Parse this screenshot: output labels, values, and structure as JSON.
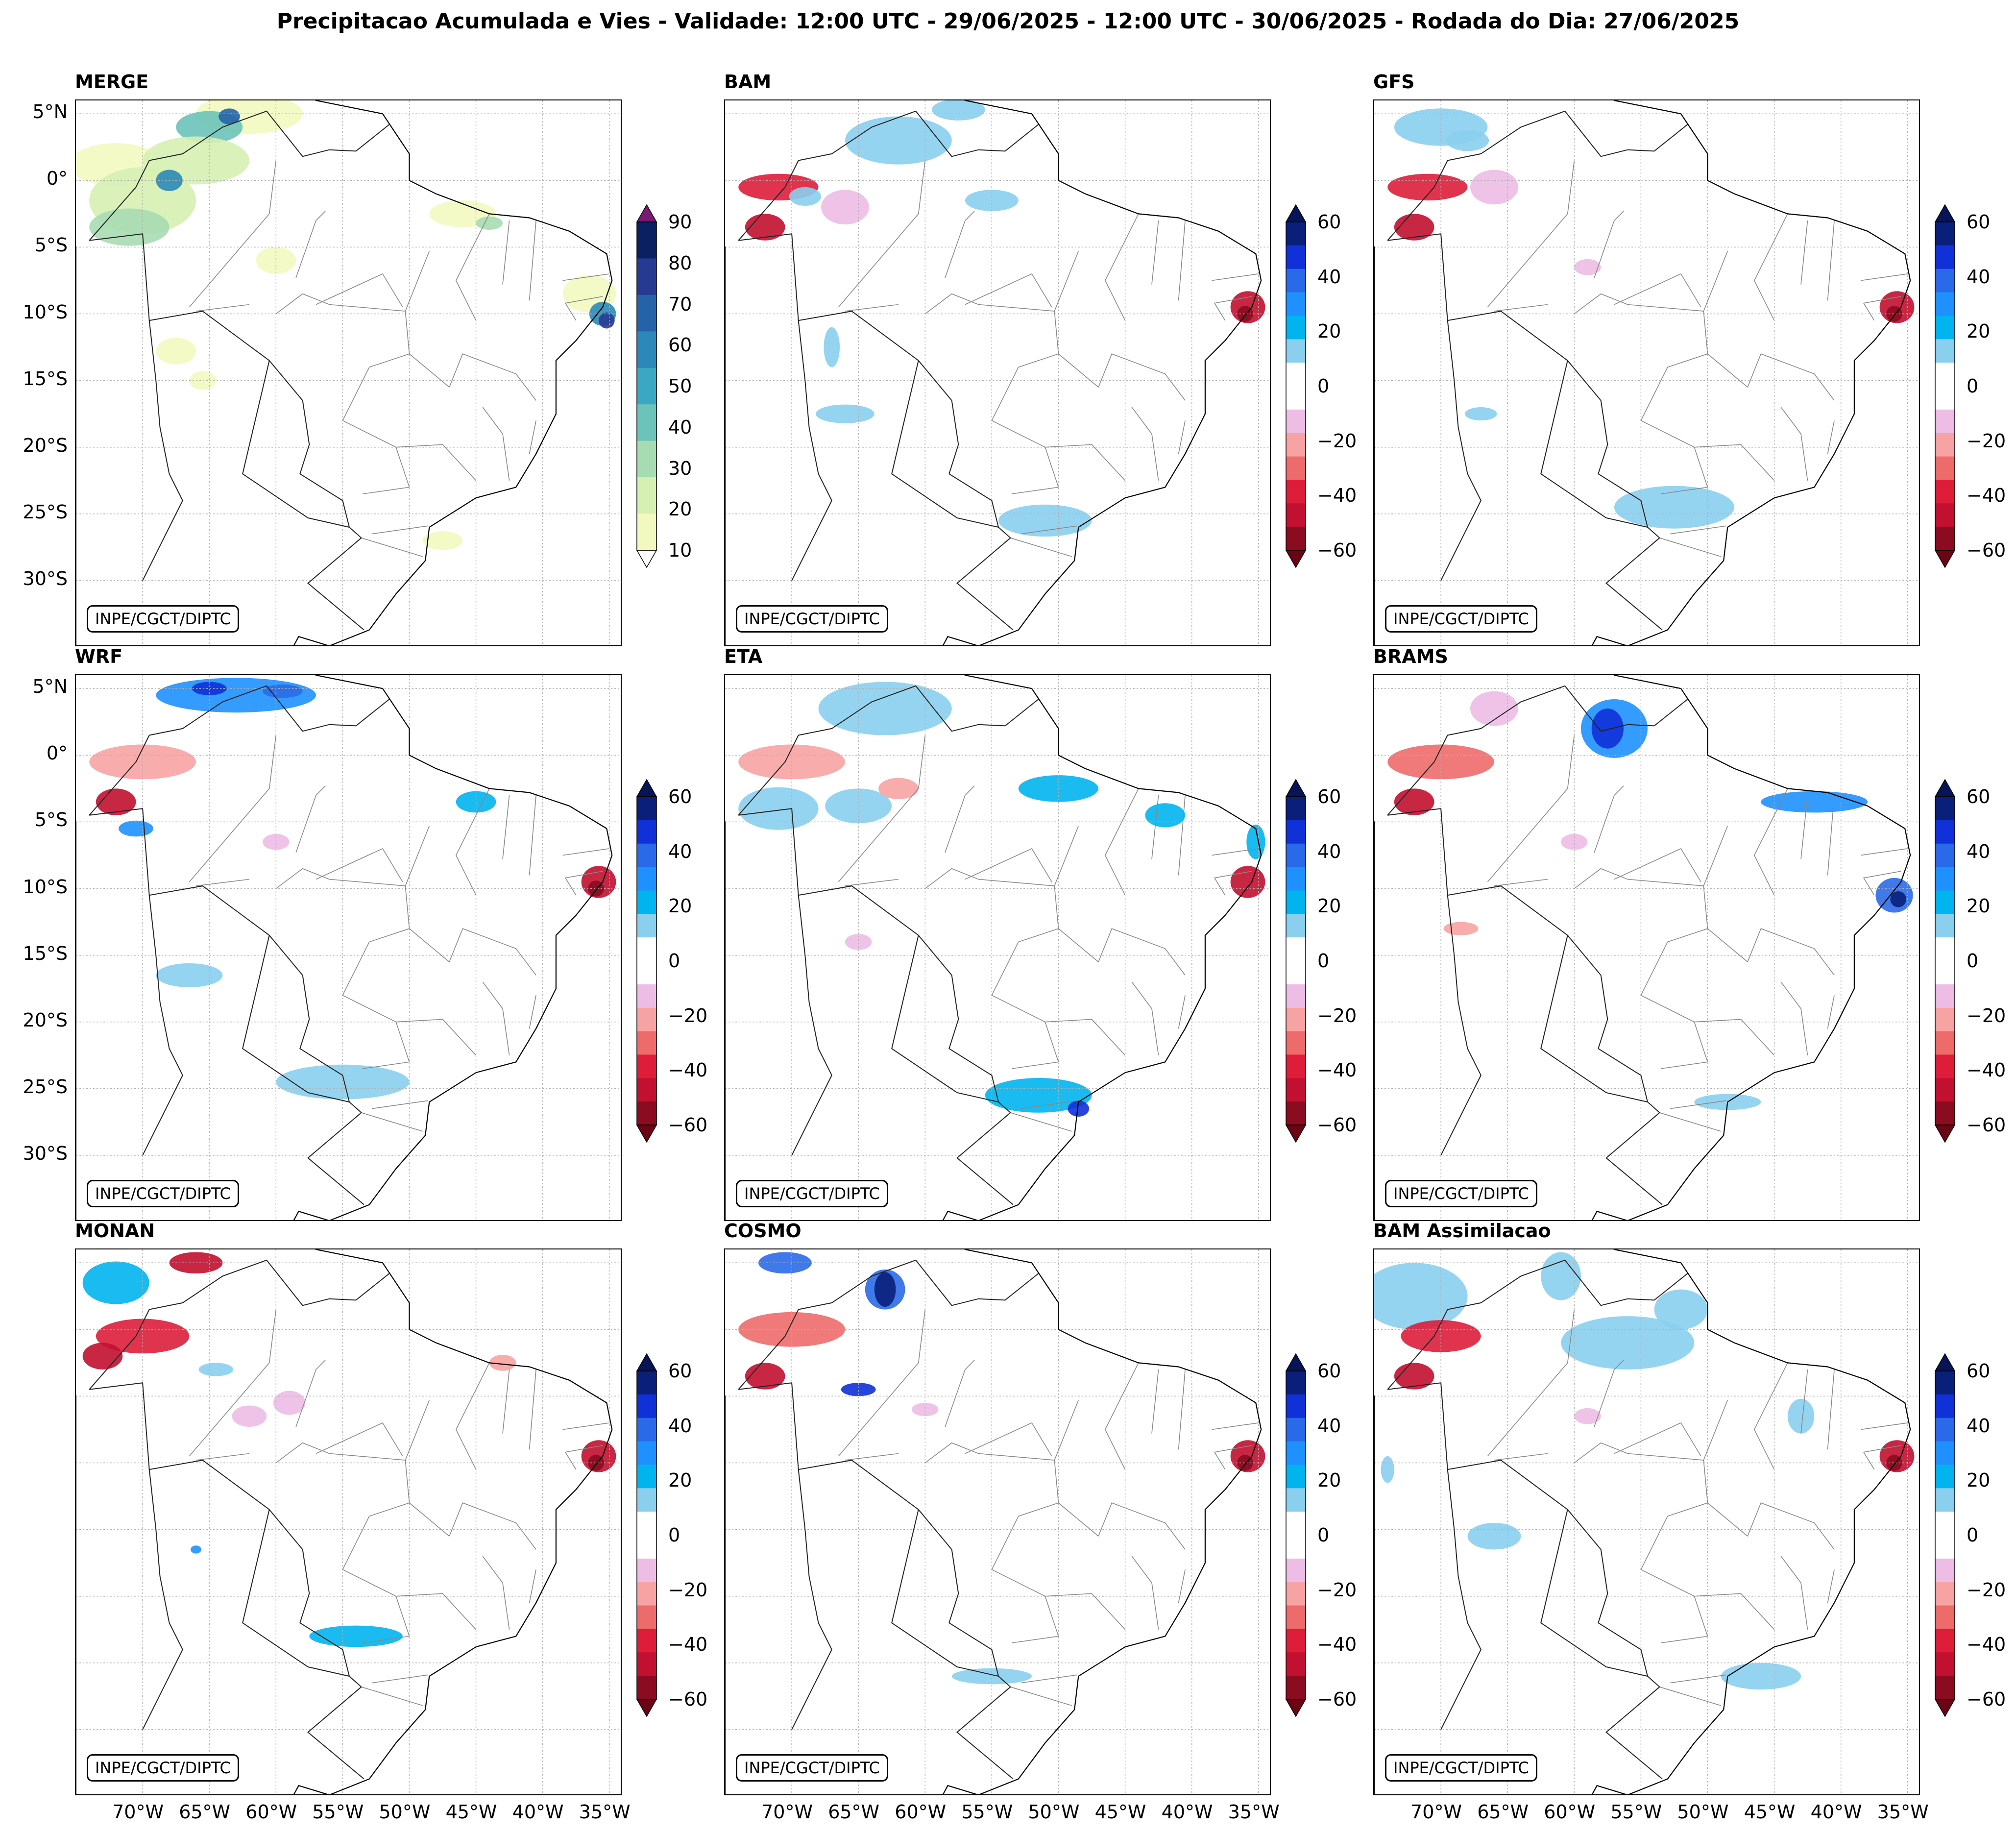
{
  "title": "Precipitacao Acumulada e Vies - Validade: 12:00 UTC - 29/06/2025 - 12:00 UTC - 30/06/2025 - Rodada do Dia: 27/06/2025",
  "credit": "INPE/CGCT/DIPTC",
  "map": {
    "region": "South America / Brazil",
    "lon_range": [
      -75,
      -34
    ],
    "lat_range": [
      -35,
      6
    ],
    "lat_ticks": [
      "5°N",
      "0°",
      "5°S",
      "10°S",
      "15°S",
      "20°S",
      "25°S",
      "30°S"
    ],
    "lat_tick_values": [
      5,
      0,
      -5,
      -10,
      -15,
      -20,
      -25,
      -30
    ],
    "lon_ticks": [
      "70°W",
      "65°W",
      "60°W",
      "55°W",
      "50°W",
      "45°W",
      "40°W",
      "35°W"
    ],
    "lon_tick_values": [
      -70,
      -65,
      -60,
      -55,
      -50,
      -45,
      -40,
      -35
    ],
    "gridlines": true
  },
  "colorbars": {
    "precip": {
      "labels": [
        "90",
        "80",
        "70",
        "60",
        "50",
        "40",
        "30",
        "20",
        "10"
      ],
      "colors": [
        "#0b2060",
        "#273a92",
        "#2563a8",
        "#2b88b8",
        "#3aa8c2",
        "#6cc3b9",
        "#a7dcb2",
        "#d6efb3",
        "#f2f9c0"
      ],
      "extend_top": "#7b1a72",
      "extend_bottom": "#ffffff"
    },
    "bias": {
      "labels": [
        "60",
        "40",
        "20",
        "0",
        "−20",
        "−40",
        "−60"
      ],
      "colors": [
        "#0a1f7a",
        "#1030d8",
        "#2a6ae8",
        "#1e90ff",
        "#00b4f0",
        "#8acfee",
        "#ffffff",
        "#ffffff",
        "#edbde6",
        "#f8a3a3",
        "#ee6b6b",
        "#dd1d3a",
        "#c21030",
        "#8b0b20"
      ],
      "extend_top": "#081458",
      "extend_bottom": "#6b0515"
    }
  },
  "panels": [
    {
      "name": "MERGE",
      "colorbar": "precip",
      "show_lat": true,
      "show_lon": false
    },
    {
      "name": "BAM",
      "colorbar": "bias",
      "show_lat": false,
      "show_lon": false
    },
    {
      "name": "GFS",
      "colorbar": "bias",
      "show_lat": false,
      "show_lon": false
    },
    {
      "name": "WRF",
      "colorbar": "bias",
      "show_lat": true,
      "show_lon": false
    },
    {
      "name": "ETA",
      "colorbar": "bias",
      "show_lat": false,
      "show_lon": false
    },
    {
      "name": "BRAMS",
      "colorbar": "bias",
      "show_lat": false,
      "show_lon": false
    },
    {
      "name": "MONAN",
      "colorbar": "bias",
      "show_lat": false,
      "show_lon": true
    },
    {
      "name": "COSMO",
      "colorbar": "bias",
      "show_lat": false,
      "show_lon": true
    },
    {
      "name": "BAM Assimilacao",
      "colorbar": "bias",
      "show_lat": false,
      "show_lon": true
    }
  ]
}
